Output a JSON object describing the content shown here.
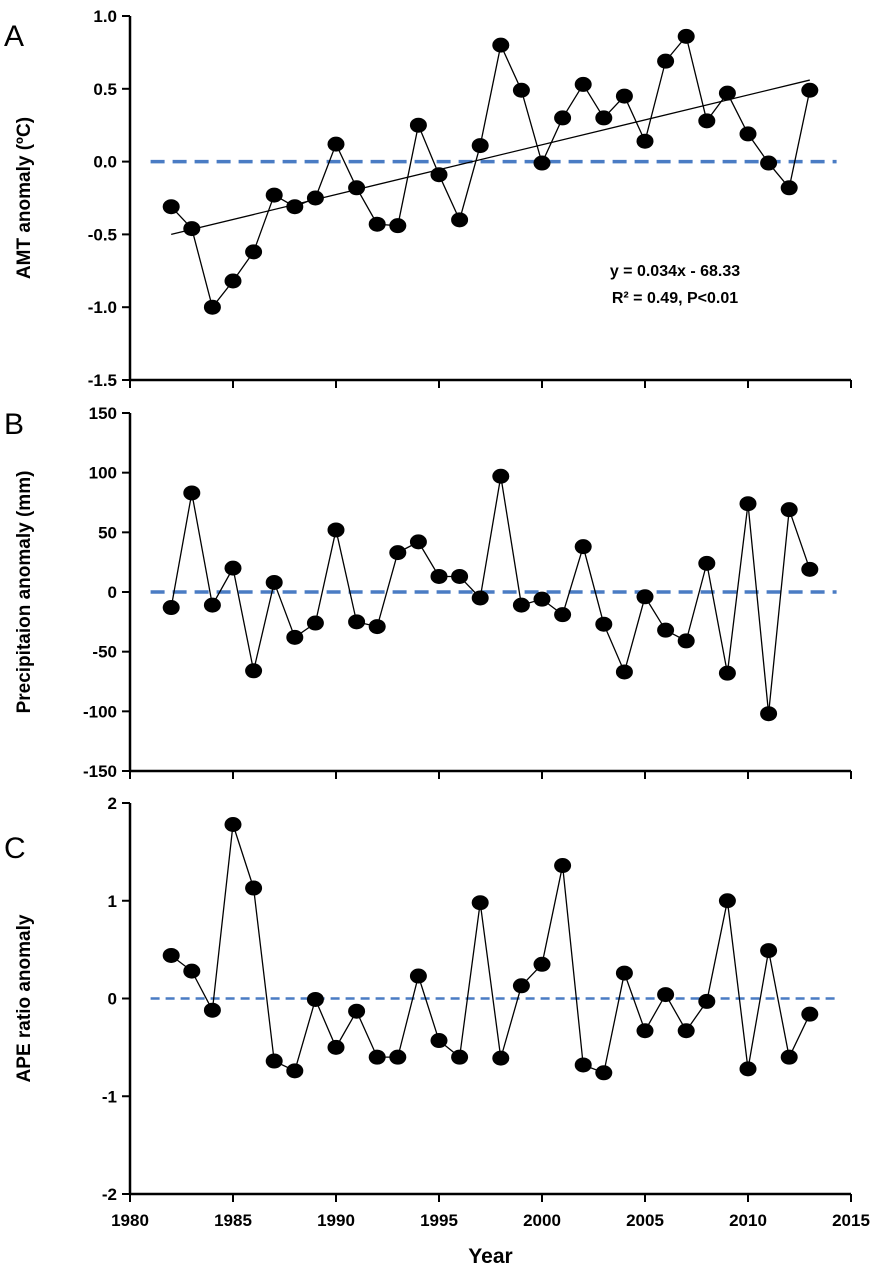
{
  "chart_data": [
    {
      "type": "line",
      "panel_label": "A",
      "ylabel": "AMT anomaly (ºC)",
      "ylim": [
        -1.5,
        1.0
      ],
      "yticks": [
        -1.5,
        -1.0,
        -0.5,
        0.0,
        0.5,
        1.0
      ],
      "ytick_labels": [
        "-1.5",
        "-1.0",
        "-0.5",
        "0.0",
        "0.5",
        "1.0"
      ],
      "x": [
        1982,
        1983,
        1984,
        1985,
        1986,
        1987,
        1988,
        1989,
        1990,
        1991,
        1992,
        1993,
        1994,
        1995,
        1996,
        1997,
        1998,
        1999,
        2000,
        2001,
        2002,
        2003,
        2004,
        2005,
        2006,
        2007,
        2008,
        2009,
        2010,
        2011,
        2012,
        2013
      ],
      "values": [
        -0.31,
        -0.46,
        -1.0,
        -0.82,
        -0.62,
        -0.23,
        -0.31,
        -0.25,
        0.12,
        -0.18,
        -0.43,
        -0.44,
        0.25,
        -0.09,
        -0.4,
        0.11,
        0.8,
        0.49,
        -0.01,
        0.3,
        0.53,
        0.3,
        0.45,
        0.14,
        0.69,
        0.86,
        0.28,
        0.47,
        0.19,
        -0.01,
        -0.18,
        0.49
      ],
      "reference_line": 0,
      "trendline": {
        "x": [
          1982,
          2013
        ],
        "y": [
          -0.5,
          0.56
        ]
      },
      "annotation": [
        "y = 0.034x - 68.33",
        "R² = 0.49, P<0.01"
      ]
    },
    {
      "type": "line",
      "panel_label": "B",
      "ylabel": "Precipitaion anomaly (mm)",
      "ylim": [
        -150,
        150
      ],
      "yticks": [
        -150,
        -100,
        -50,
        0,
        50,
        100,
        150
      ],
      "ytick_labels": [
        "-150",
        "-100",
        "-50",
        "0",
        "50",
        "100",
        "150"
      ],
      "x": [
        1982,
        1983,
        1984,
        1985,
        1986,
        1987,
        1988,
        1989,
        1990,
        1991,
        1992,
        1993,
        1994,
        1995,
        1996,
        1997,
        1998,
        1999,
        2000,
        2001,
        2002,
        2003,
        2004,
        2005,
        2006,
        2007,
        2008,
        2009,
        2010,
        2011,
        2012,
        2013
      ],
      "values": [
        -13,
        83,
        -11,
        20,
        -66,
        8,
        -38,
        -26,
        52,
        -25,
        -29,
        33,
        42,
        13,
        13,
        -5,
        97,
        -11,
        -6,
        -19,
        38,
        -27,
        -67,
        -4,
        -32,
        -41,
        24,
        -68,
        74,
        -102,
        69,
        19
      ],
      "reference_line": 0
    },
    {
      "type": "line",
      "panel_label": "C",
      "ylabel": "APE ratio anomaly",
      "xlabel": "Year",
      "ylim": [
        -2,
        2
      ],
      "yticks": [
        -2,
        -1,
        0,
        1,
        2
      ],
      "ytick_labels": [
        "-2",
        "-1",
        "0",
        "1",
        "2"
      ],
      "xlim": [
        1980,
        2015
      ],
      "xticks": [
        1980,
        1985,
        1990,
        1995,
        2000,
        2005,
        2010,
        2015
      ],
      "xtick_labels": [
        "1980",
        "1985",
        "1990",
        "1995",
        "2000",
        "2005",
        "2010",
        "2015"
      ],
      "x": [
        1982,
        1983,
        1984,
        1985,
        1986,
        1987,
        1988,
        1989,
        1990,
        1991,
        1992,
        1993,
        1994,
        1995,
        1996,
        1997,
        1998,
        1999,
        2000,
        2001,
        2002,
        2003,
        2004,
        2005,
        2006,
        2007,
        2008,
        2009,
        2010,
        2011,
        2012,
        2013
      ],
      "values": [
        0.44,
        0.28,
        -0.12,
        1.78,
        1.13,
        -0.64,
        -0.74,
        -0.01,
        -0.5,
        -0.13,
        -0.6,
        -0.6,
        0.23,
        -0.43,
        -0.6,
        0.98,
        -0.61,
        0.13,
        0.35,
        1.36,
        -0.68,
        -0.76,
        0.26,
        -0.33,
        0.04,
        -0.33,
        -0.03,
        1.0,
        -0.72,
        0.49,
        -0.6,
        -0.16
      ],
      "reference_line": 0
    }
  ],
  "colors": {
    "reference": "#4a7cc4",
    "series": "#000000"
  }
}
